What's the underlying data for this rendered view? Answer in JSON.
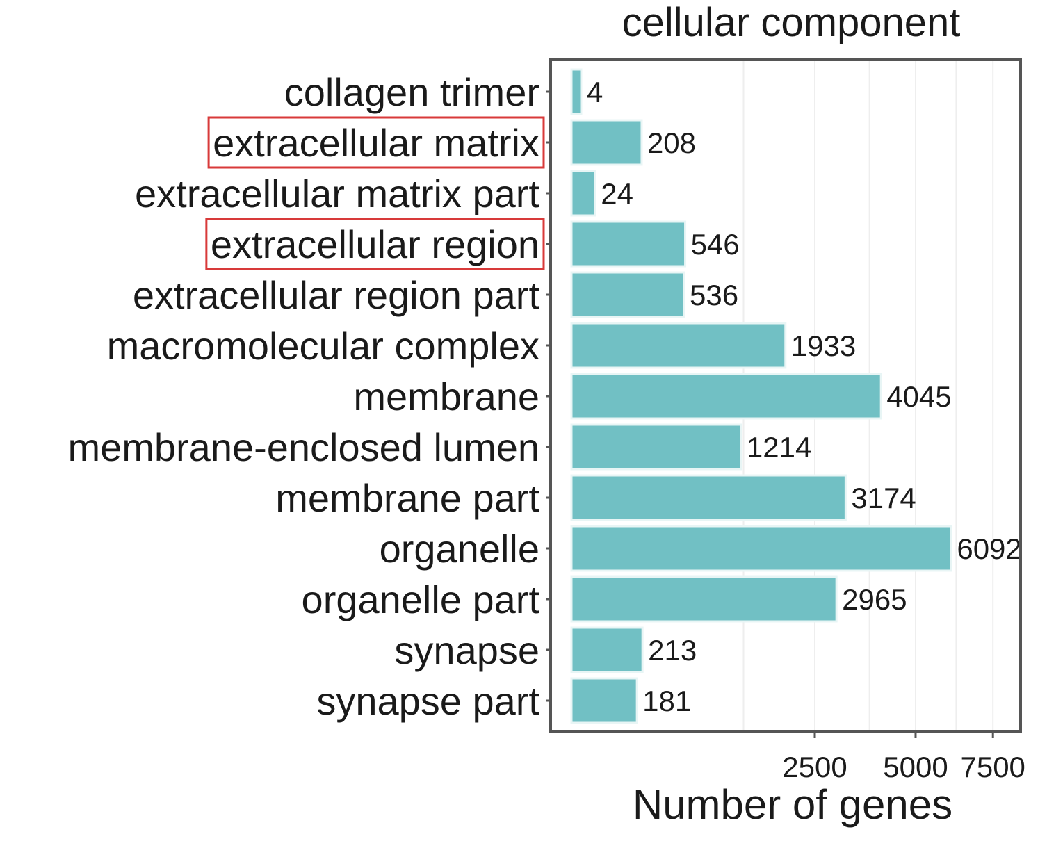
{
  "colors": {
    "bar": "#71c0c4",
    "bar_edge": "#e8f5f5",
    "highlight_box": "#d83a3a",
    "panel_border": "#555555",
    "grid": "#eeeeee",
    "text": "#1a1a1a"
  },
  "chart_data": {
    "type": "bar",
    "orientation": "horizontal",
    "title": "cellular component",
    "xlabel": "Number of genes",
    "ylabel": "",
    "x_scale": "sqrt",
    "xlim": [
      0,
      8000
    ],
    "x_ticks": [
      2500,
      5000,
      7500
    ],
    "x_tick_labels": [
      "2500",
      "5000",
      "7500"
    ],
    "grid": true,
    "categories": [
      "collagen trimer",
      "extracellular matrix",
      "extracellular matrix part",
      "extracellular region",
      "extracellular region part",
      "macromolecular complex",
      "membrane",
      "membrane-enclosed lumen",
      "membrane part",
      "organelle",
      "organelle part",
      "synapse",
      "synapse part"
    ],
    "values": [
      4,
      208,
      24,
      546,
      536,
      1933,
      4045,
      1214,
      3174,
      6092,
      2965,
      213,
      181
    ],
    "value_labels": [
      "4",
      "208",
      "24",
      "546",
      "536",
      "1933",
      "4045",
      "1214",
      "3174",
      "6092",
      "2965",
      "213",
      "181"
    ],
    "highlighted_categories": [
      "extracellular matrix",
      "extracellular region"
    ]
  }
}
